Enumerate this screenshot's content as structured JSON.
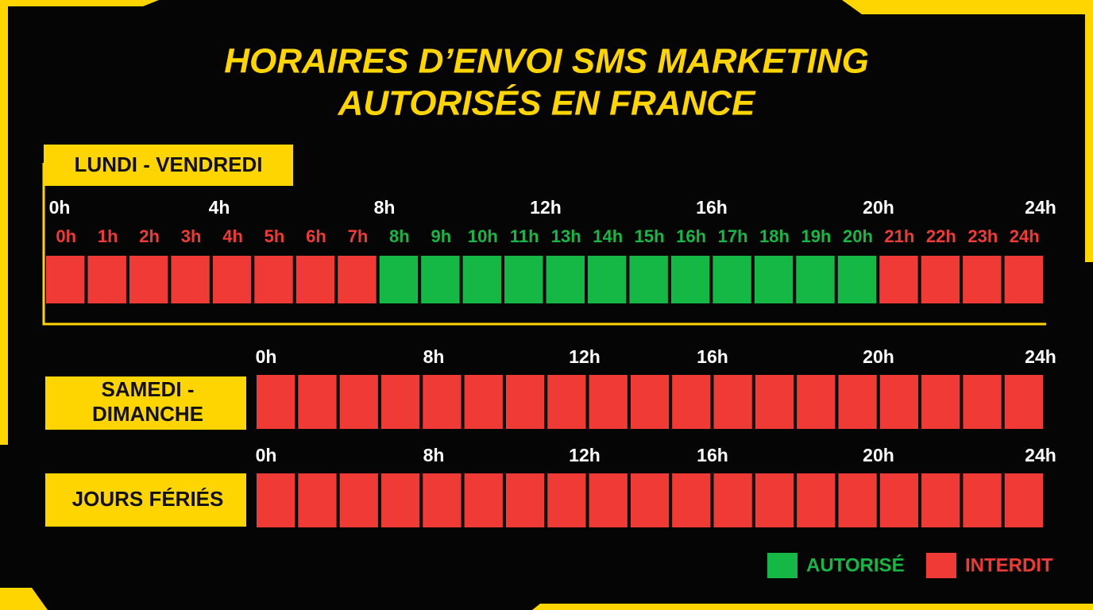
{
  "title": [
    "HORAIRES D’ENVOI SMS MARKETING",
    "AUTORISÉS EN FRANCE"
  ],
  "weekdays": {
    "label": [
      "LUNDI - VENDREDI"
    ],
    "hours": [
      "0h",
      "4h",
      "8h",
      "12h",
      "16h",
      "20h",
      "24h"
    ],
    "cells": [
      {
        "label": "0h",
        "color": "#f03a35"
      },
      {
        "label": "1h",
        "color": "#f03a35"
      },
      {
        "label": "2h",
        "color": "#f03a35"
      },
      {
        "label": "3h",
        "color": "#f03a35"
      },
      {
        "label": "4h",
        "color": "#f03a35"
      },
      {
        "label": "5h",
        "color": "#f03a35"
      },
      {
        "label": "6h",
        "color": "#f03a35"
      },
      {
        "label": "7h",
        "color": "#f03a35"
      },
      {
        "label": "8h",
        "color": "#15b845"
      },
      {
        "label": "9h",
        "color": "#15b845"
      },
      {
        "label": "10h",
        "color": "#15b845"
      },
      {
        "label": "11h",
        "color": "#15b845"
      },
      {
        "label": "13h",
        "color": "#15b845"
      },
      {
        "label": "14h",
        "color": "#15b845"
      },
      {
        "label": "15h",
        "color": "#15b845"
      },
      {
        "label": "16h",
        "color": "#15b845"
      },
      {
        "label": "17h",
        "color": "#15b845"
      },
      {
        "label": "18h",
        "color": "#15b845"
      },
      {
        "label": "19h",
        "color": "#15b845"
      },
      {
        "label": "20h",
        "color": "#15b845"
      },
      {
        "label": "21h",
        "color": "#f03a35"
      },
      {
        "label": "22h",
        "color": "#f03a35"
      },
      {
        "label": "23h",
        "color": "#f03a35"
      },
      {
        "label": "24h",
        "color": "#f03a35"
      }
    ]
  },
  "weekend": {
    "label": [
      "SAMEDI -",
      "DIMANCHE"
    ],
    "hours": [
      "0h",
      "8h",
      "12h",
      "16h",
      "20h",
      "24h"
    ],
    "cell_colors": [
      "#f03a35",
      "#f03a35",
      "#f03a35",
      "#f03a35",
      "#f03a35",
      "#f03a35",
      "#f03a35",
      "#f03a35",
      "#f03a35",
      "#f03a35",
      "#f03a35",
      "#f03a35",
      "#f03a35",
      "#f03a35",
      "#f03a35",
      "#f03a35",
      "#f03a35",
      "#f03a35",
      "#f03a35"
    ]
  },
  "holidays": {
    "label": [
      "JOURS FÉRIÉS"
    ],
    "hours": [
      "0h",
      "8h",
      "12h",
      "16h",
      "20h",
      "24h"
    ],
    "cell_colors": [
      "#f03a35",
      "#f03a35",
      "#f03a35",
      "#f03a35",
      "#f03a35",
      "#f03a35",
      "#f03a35",
      "#f03a35",
      "#f03a35",
      "#f03a35",
      "#f03a35",
      "#f03a35",
      "#f03a35",
      "#f03a35",
      "#f03a35",
      "#f03a35",
      "#f03a35",
      "#f03a35",
      "#f03a35"
    ]
  },
  "legend": [
    {
      "label": "AUTORISÉ",
      "color": "#15b845"
    },
    {
      "label": "INTERDIT",
      "color": "#f03a35"
    }
  ]
}
